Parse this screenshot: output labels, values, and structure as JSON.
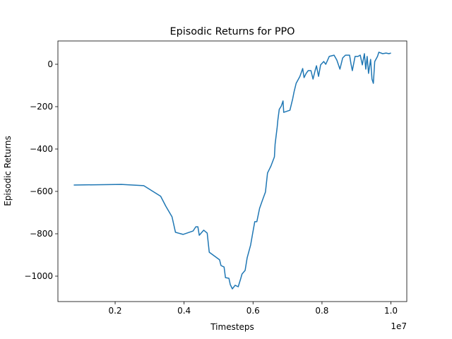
{
  "chart_data": {
    "type": "line",
    "title": "Episodic Returns for PPO",
    "x_label": "Timesteps",
    "y_label": "Episodic Returns",
    "x_offset_label": "1e7",
    "x": [
      0.08,
      0.218,
      0.283,
      0.332,
      0.347,
      0.365,
      0.375,
      0.397,
      0.426,
      0.434,
      0.44,
      0.444,
      0.457,
      0.467,
      0.473,
      0.503,
      0.507,
      0.516,
      0.52,
      0.53,
      0.534,
      0.54,
      0.548,
      0.557,
      0.564,
      0.568,
      0.577,
      0.583,
      0.593,
      0.599,
      0.605,
      0.611,
      0.619,
      0.627,
      0.636,
      0.642,
      0.652,
      0.662,
      0.664,
      0.67,
      0.672,
      0.676,
      0.682,
      0.687,
      0.689,
      0.707,
      0.715,
      0.719,
      0.725,
      0.736,
      0.744,
      0.748,
      0.754,
      0.76,
      0.768,
      0.774,
      0.78,
      0.784,
      0.79,
      0.796,
      0.805,
      0.811,
      0.821,
      0.835,
      0.843,
      0.852,
      0.86,
      0.868,
      0.88,
      0.884,
      0.888,
      0.896,
      0.904,
      0.911,
      0.917,
      0.923,
      0.927,
      0.931,
      0.935,
      0.941,
      0.945,
      0.949,
      0.953,
      0.961,
      0.965,
      0.976,
      0.986,
      0.994,
      1.0
    ],
    "series": [
      {
        "name": "PPO",
        "color": "#1f77b4",
        "values": [
          -570,
          -567,
          -573,
          -623,
          -670,
          -720,
          -793,
          -803,
          -787,
          -767,
          -767,
          -807,
          -783,
          -797,
          -887,
          -923,
          -950,
          -957,
          -1007,
          -1010,
          -1040,
          -1060,
          -1043,
          -1050,
          -1013,
          -990,
          -973,
          -913,
          -853,
          -797,
          -743,
          -743,
          -680,
          -643,
          -603,
          -513,
          -480,
          -437,
          -377,
          -297,
          -263,
          -213,
          -197,
          -173,
          -227,
          -217,
          -163,
          -130,
          -90,
          -57,
          -20,
          -63,
          -43,
          -30,
          -30,
          -70,
          -30,
          -7,
          -57,
          -3,
          13,
          0,
          37,
          43,
          20,
          -23,
          30,
          43,
          43,
          3,
          -30,
          37,
          37,
          43,
          -3,
          50,
          -23,
          37,
          -43,
          23,
          -70,
          -90,
          13,
          37,
          57,
          50,
          53,
          50,
          53
        ]
      }
    ],
    "xlim": [
      0.034,
      1.046
    ],
    "ylim": [
      -1120,
      110
    ],
    "xticks": [
      0.2,
      0.4,
      0.6,
      0.8,
      {
        "value": 1,
        "label": "1.0"
      }
    ],
    "yticks": [
      {
        "value": -1000,
        "label": "−1000"
      },
      {
        "value": -800,
        "label": "−800"
      },
      {
        "value": -600,
        "label": "−600"
      },
      {
        "value": -400,
        "label": "−400"
      },
      {
        "value": -200,
        "label": "−200"
      },
      0
    ],
    "grid": false
  }
}
